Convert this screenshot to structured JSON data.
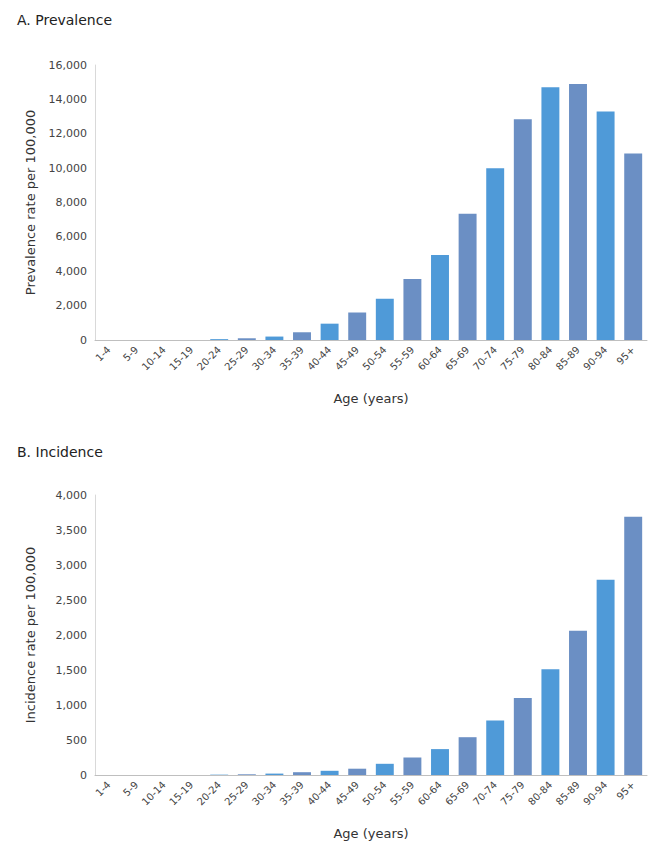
{
  "chart_data": [
    {
      "type": "bar",
      "title": "A. Prevalence",
      "x_label": "Age (years)",
      "y_label": "Prevalence rate per 100,000",
      "categories": [
        "1-4",
        "5-9",
        "10-14",
        "15-19",
        "20-24",
        "25-29",
        "30-34",
        "35-39",
        "40-44",
        "45-49",
        "50-54",
        "55-59",
        "60-64",
        "65-69",
        "70-74",
        "75-79",
        "80-84",
        "85-89",
        "90-94",
        "95+"
      ],
      "values": [
        0,
        0,
        0,
        0,
        50,
        100,
        200,
        450,
        950,
        1600,
        2400,
        3550,
        4950,
        7350,
        10000,
        12850,
        14700,
        14900,
        13300,
        10850
      ],
      "colors": [
        "#4f9ad8",
        "#6b8fc4",
        "#4f9ad8",
        "#6b8fc4",
        "#4f9ad8",
        "#6b8fc4",
        "#4f9ad8",
        "#6b8fc4",
        "#4f9ad8",
        "#6b8fc4",
        "#4f9ad8",
        "#6b8fc4",
        "#4f9ad8",
        "#6b8fc4",
        "#4f9ad8",
        "#6b8fc4",
        "#4f9ad8",
        "#6b8fc4",
        "#4f9ad8",
        "#6b8fc4"
      ],
      "ylim": [
        0,
        16000
      ],
      "yticks": [
        0,
        {
          "value": 2000,
          "label": "2,000"
        },
        {
          "value": 4000,
          "label": "4,000"
        },
        {
          "value": 6000,
          "label": "6,000"
        },
        {
          "value": 8000,
          "label": "8,000"
        },
        {
          "value": 10000,
          "label": "10,000"
        },
        {
          "value": 12000,
          "label": "12,000"
        },
        {
          "value": 14000,
          "label": "14,000"
        },
        {
          "value": 16000,
          "label": "16,000"
        }
      ],
      "grid": false
    },
    {
      "type": "bar",
      "title": "B. Incidence",
      "x_label": "Age (years)",
      "y_label": "Incidence rate per 100,000",
      "categories": [
        "1-4",
        "5-9",
        "10-14",
        "15-19",
        "20-24",
        "25-29",
        "30-34",
        "35-39",
        "40-44",
        "45-49",
        "50-54",
        "55-59",
        "60-64",
        "65-69",
        "70-74",
        "75-79",
        "80-84",
        "85-89",
        "90-94",
        "95+"
      ],
      "values": [
        0,
        0,
        0,
        0,
        5,
        10,
        20,
        40,
        60,
        90,
        160,
        250,
        370,
        540,
        780,
        1100,
        1510,
        2060,
        2790,
        3690
      ],
      "colors": [
        "#4f9ad8",
        "#6b8fc4",
        "#4f9ad8",
        "#6b8fc4",
        "#4f9ad8",
        "#6b8fc4",
        "#4f9ad8",
        "#6b8fc4",
        "#4f9ad8",
        "#6b8fc4",
        "#4f9ad8",
        "#6b8fc4",
        "#4f9ad8",
        "#6b8fc4",
        "#4f9ad8",
        "#6b8fc4",
        "#4f9ad8",
        "#6b8fc4",
        "#4f9ad8",
        "#6b8fc4"
      ],
      "ylim": [
        0,
        4000
      ],
      "yticks": [
        0,
        500,
        {
          "value": 1000,
          "label": "1,000"
        },
        {
          "value": 1500,
          "label": "1,500"
        },
        {
          "value": 2000,
          "label": "2,000"
        },
        {
          "value": 2500,
          "label": "2,500"
        },
        {
          "value": 3000,
          "label": "3,000"
        },
        {
          "value": 3500,
          "label": "3,500"
        },
        {
          "value": 4000,
          "label": "4,000"
        }
      ],
      "grid": false
    }
  ]
}
